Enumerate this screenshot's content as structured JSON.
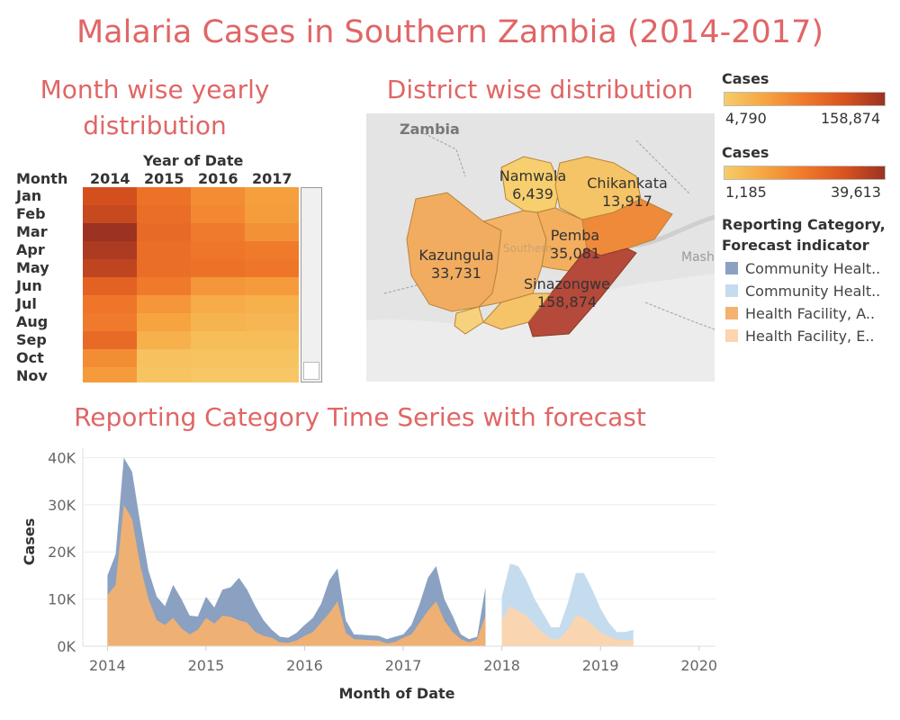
{
  "title": "Malaria Cases in Southern Zambia (2014-2017)",
  "heatmap_title": "Month wise yearly distribution",
  "map_title": "District wise distribution",
  "ts_title": "Reporting Category Time Series with forecast",
  "heatmap": {
    "col_header": "Year of Date",
    "row_header": "Month",
    "years": [
      "2014",
      "2015",
      "2016",
      "2017"
    ],
    "months": [
      "Jan",
      "Feb",
      "Mar",
      "Apr",
      "May",
      "Jun",
      "Jul",
      "Aug",
      "Sep",
      "Oct",
      "Nov"
    ],
    "values": [
      [
        31000,
        22000,
        16000,
        12000
      ],
      [
        33000,
        23000,
        17000,
        12500
      ],
      [
        39613,
        24000,
        20000,
        15000
      ],
      [
        37000,
        23000,
        21000,
        20000
      ],
      [
        34000,
        23000,
        22000,
        21000
      ],
      [
        26000,
        20000,
        14000,
        13000
      ],
      [
        21000,
        14000,
        9000,
        8000
      ],
      [
        20000,
        11000,
        7000,
        6500
      ],
      [
        24000,
        8000,
        5000,
        5000
      ],
      [
        16000,
        4000,
        3500,
        3500
      ],
      [
        13000,
        3000,
        2500,
        2500
      ]
    ]
  },
  "map": {
    "country_label": "Zambia",
    "faint_labels": [
      "Southern",
      "Masho"
    ],
    "districts": [
      {
        "name": "Namwala",
        "value": "6,439",
        "cases": 6439
      },
      {
        "name": "Chikankata",
        "value": "13,917",
        "cases": 13917
      },
      {
        "name": "Kazungula",
        "value": "33,731",
        "cases": 33731
      },
      {
        "name": "Pemba",
        "value": "35,081",
        "cases": 35081
      },
      {
        "name": "Sinazongwe",
        "value": "158,874",
        "cases": 158874
      }
    ]
  },
  "legend": {
    "cases1": {
      "title": "Cases",
      "min": "4,790",
      "max": "158,874"
    },
    "cases2": {
      "title": "Cases",
      "min": "1,185",
      "max": "39,613"
    },
    "category_title_1": "Reporting Category,",
    "category_title_2": "Forecast indicator",
    "items": [
      {
        "label": "Community Healt..",
        "color": "#8aa1c1"
      },
      {
        "label": "Community Healt..",
        "color": "#c5dcef"
      },
      {
        "label": "Health Facility, A..",
        "color": "#f4b170"
      },
      {
        "label": "Health Facility, E..",
        "color": "#fdd4ad"
      }
    ]
  },
  "colors": {
    "scale": [
      "#f6cc6a",
      "#f6a540",
      "#f0782a",
      "#d9531e",
      "#9b3222"
    ]
  },
  "chart_data": {
    "type": "area",
    "xlabel": "Month of Date",
    "ylabel": "Cases",
    "x_ticks": [
      "2014",
      "2015",
      "2016",
      "2017",
      "2018",
      "2019",
      "2020"
    ],
    "y_ticks": [
      "0K",
      "10K",
      "20K",
      "30K",
      "40K"
    ],
    "ylim": [
      0,
      42000
    ],
    "xlim": [
      "2013-10",
      "2020-03"
    ],
    "series": [
      {
        "name": "Community Healt.. (Actual)",
        "start": "2014-01",
        "values": [
          15000,
          19500,
          40000,
          37000,
          26000,
          16000,
          10500,
          8500,
          13000,
          10000,
          6500,
          6300,
          10500,
          8200,
          12000,
          12500,
          14500,
          12000,
          8500,
          5500,
          3500,
          2000,
          1800,
          2800,
          4500,
          6000,
          9000,
          14000,
          16500,
          5500,
          2500,
          2400,
          2300,
          2200,
          1500,
          2000,
          2500,
          4500,
          9000,
          14500,
          17000,
          10000,
          6500,
          2500,
          1500,
          2000,
          12500
        ]
      },
      {
        "name": "Health Facility, A.. (Actual)",
        "start": "2014-01",
        "values": [
          10800,
          13000,
          30000,
          27000,
          17000,
          10000,
          5500,
          4500,
          6000,
          3800,
          2500,
          3500,
          6000,
          4800,
          6500,
          6200,
          5500,
          5000,
          3000,
          2200,
          1800,
          800,
          700,
          1200,
          2200,
          3000,
          5000,
          7000,
          9500,
          2800,
          1500,
          1400,
          1300,
          1200,
          600,
          900,
          1800,
          2500,
          5000,
          7500,
          9500,
          5500,
          3000,
          1500,
          800,
          1500,
          6500
        ]
      },
      {
        "name": "Community Healt.. (Estimate)",
        "start": "2018-01",
        "values": [
          10500,
          17500,
          17000,
          14000,
          10000,
          7000,
          4000,
          4000,
          9000,
          15500,
          15500,
          12000,
          8000,
          5000,
          3000,
          3000,
          3500
        ]
      },
      {
        "name": "Health Facility, E.. (Estimate)",
        "start": "2018-01",
        "values": [
          5500,
          8500,
          7500,
          6500,
          4500,
          2800,
          1500,
          1500,
          3500,
          6500,
          6000,
          4500,
          3000,
          2000,
          1500,
          1200,
          1500
        ]
      }
    ]
  }
}
